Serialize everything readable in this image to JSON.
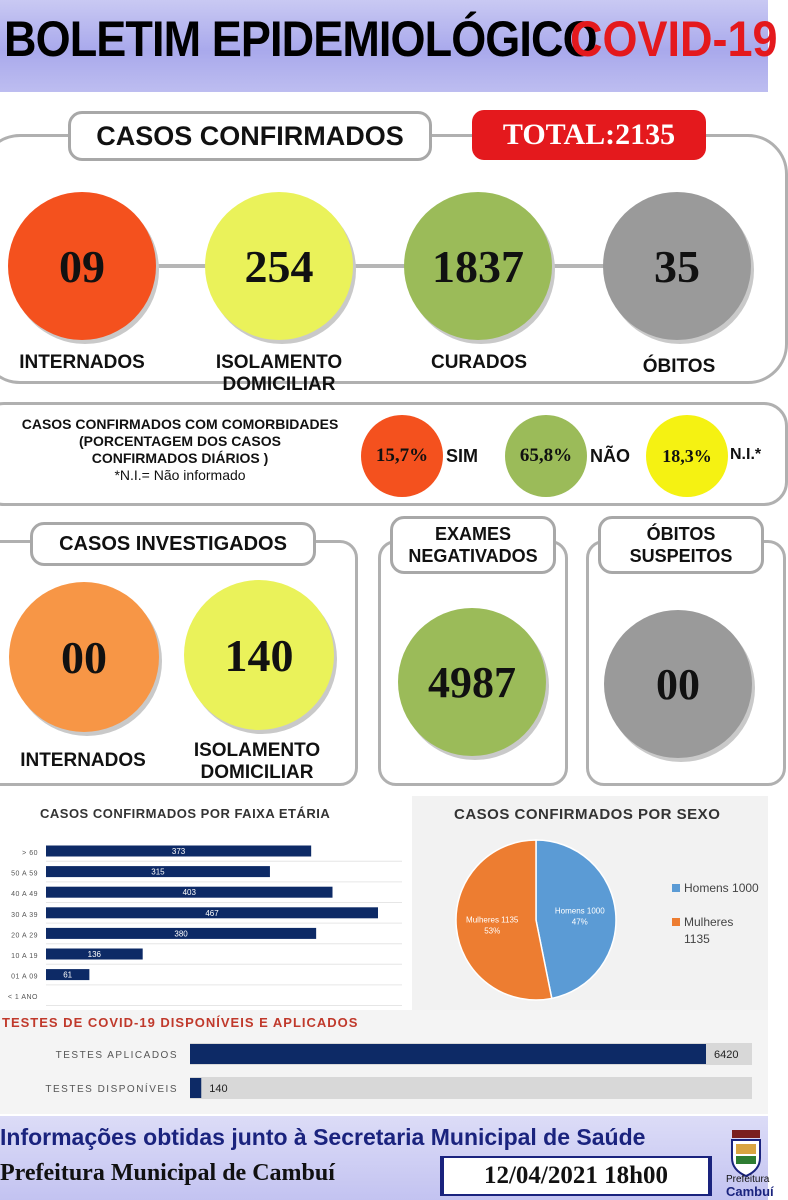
{
  "header": {
    "title": "BOLETIM EPIDEMIOLÓGICO",
    "title_accent": "COVID-19"
  },
  "confirmed": {
    "label": "CASOS CONFIRMADOS",
    "total": "TOTAL:2135",
    "items": [
      {
        "value": "09",
        "label": "INTERNADOS",
        "color": "#f4511e"
      },
      {
        "value": "254",
        "label": "ISOLAMENTO DOMICILIAR",
        "color": "#eaf25a"
      },
      {
        "value": "1837",
        "label": "CURADOS",
        "color": "#9bbb59"
      },
      {
        "value": "35",
        "label": "ÓBITOS",
        "color": "#9a9a9a"
      }
    ]
  },
  "comorbidities": {
    "title_l1": "CASOS CONFIRMADOS COM COMORBIDADES",
    "title_l2": "(PORCENTAGEM DOS CASOS",
    "title_l3": "CONFIRMADOS DIÁRIOS )",
    "note": "*N.I.= Não informado",
    "items": [
      {
        "value": "15,7%",
        "label": "SIM",
        "color": "#f4511e"
      },
      {
        "value": "65,8%",
        "label": "NÃO",
        "color": "#9bbb59"
      },
      {
        "value": "18,3%",
        "label": "N.I.*",
        "color": "#f5f212"
      }
    ]
  },
  "investigated": {
    "label": "CASOS INVESTIGADOS",
    "items": [
      {
        "value": "00",
        "label": "INTERNADOS",
        "color": "#f79646"
      },
      {
        "value": "140",
        "label": "ISOLAMENTO DOMICILIAR",
        "color": "#eaf25a"
      }
    ]
  },
  "negative": {
    "label": "EXAMES NEGATIVADOS",
    "value": "4987",
    "color": "#9bbb59"
  },
  "suspect_deaths": {
    "label": "ÓBITOS SUSPEITOS",
    "value": "00",
    "color": "#9a9a9a"
  },
  "chart_data": [
    {
      "type": "bar",
      "title": "CASOS CONFIRMADOS POR FAIXA ETÁRIA",
      "categories": [
        "> 60",
        "50 A 59",
        "40 A 49",
        "30 A 39",
        "20 A 29",
        "10 A 19",
        "01 A 09",
        "< 1 ANO"
      ],
      "values": [
        373,
        315,
        403,
        467,
        380,
        136,
        61,
        null
      ],
      "color": "#0d2a66"
    },
    {
      "type": "pie",
      "title": "CASOS CONFIRMADOS POR SEXO",
      "labels": [
        "Homens 1000",
        "Mulheres 1135"
      ],
      "values": [
        1000,
        1135
      ],
      "slice_labels": [
        "Homens 1000",
        "Mulheres 1135"
      ],
      "percents": [
        "47%",
        "53%"
      ],
      "legend": [
        "Homens 1000",
        "Mulheres",
        "1135"
      ],
      "colors": [
        "#5b9bd5",
        "#ed7d31"
      ]
    },
    {
      "type": "bar",
      "title": "TESTES DE COVID-19 DISPONÍVEIS E APLICADOS",
      "categories": [
        "TESTES APLICADOS",
        "TESTES DISPONÍVEIS"
      ],
      "values": [
        6420,
        140
      ],
      "color": "#0d2a66"
    }
  ],
  "footer": {
    "line1": "Informações obtidas junto à Secretaria Municipal de Saúde",
    "line2": "Prefeitura Municipal de Cambuí",
    "datetime": "12/04/2021 18h00",
    "crest_l1": "Prefeitura",
    "crest_l2": "Cambuí"
  }
}
